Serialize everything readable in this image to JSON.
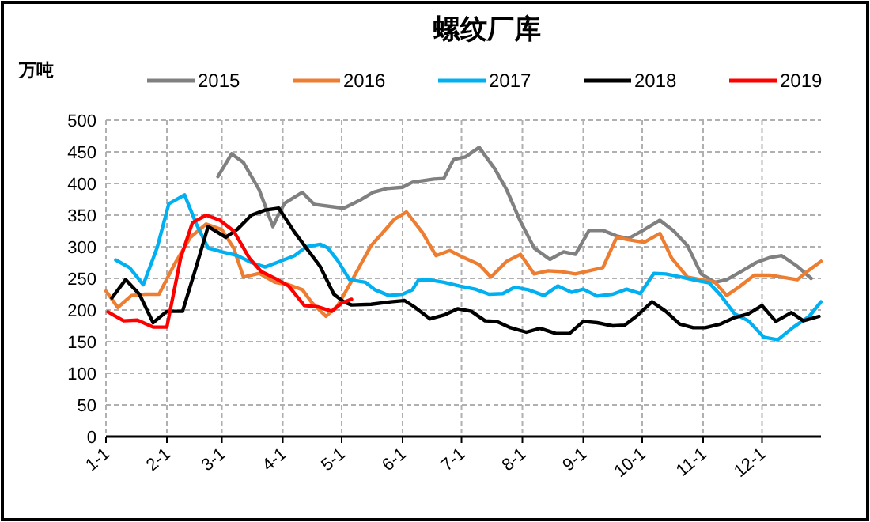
{
  "chart_data": {
    "type": "line",
    "title": "螺纹厂库",
    "ylabel": "万吨",
    "xlim": [
      "--01-01",
      "--12-31"
    ],
    "ylim": [
      0,
      500
    ],
    "xticks": [
      {
        "value": "--01-01",
        "label": "1-1"
      },
      {
        "value": "--02-01",
        "label": "2-1"
      },
      {
        "value": "--03-01",
        "label": "3-1"
      },
      {
        "value": "--04-01",
        "label": "4-1"
      },
      {
        "value": "--05-01",
        "label": "5-1"
      },
      {
        "value": "--06-01",
        "label": "6-1"
      },
      {
        "value": "--07-01",
        "label": "7-1"
      },
      {
        "value": "--08-01",
        "label": "8-1"
      },
      {
        "value": "--09-01",
        "label": "9-1"
      },
      {
        "value": "--10-01",
        "label": "10-1"
      },
      {
        "value": "--11-01",
        "label": "11-1"
      },
      {
        "value": "--12-01",
        "label": "12-1"
      }
    ],
    "yticks": [
      0,
      50,
      100,
      150,
      200,
      250,
      300,
      350,
      400,
      450,
      500
    ],
    "grid": true,
    "legend": "top",
    "marker": "none",
    "line_style": "solid",
    "series": [
      {
        "name": "2015",
        "color": "#808080",
        "x": [
          "--02-27",
          "--03-06",
          "--03-12",
          "--03-20",
          "--03-27",
          "--03-30",
          "--04-02",
          "--04-11",
          "--04-17",
          "--05-02",
          "--05-10",
          "--05-17",
          "--05-24",
          "--06-01",
          "--06-06",
          "--06-17",
          "--06-22",
          "--06-27",
          "--07-03",
          "--07-10",
          "--07-18",
          "--07-24",
          "--07-31",
          "--08-07",
          "--08-15",
          "--08-22",
          "--08-28",
          "--09-04",
          "--09-11",
          "--09-18",
          "--09-24",
          "--10-02",
          "--10-10",
          "--10-17",
          "--10-24",
          "--10-31",
          "--11-07",
          "--11-13",
          "--11-21",
          "--11-28",
          "--12-05",
          "--12-11",
          "--12-19",
          "--12-26"
        ],
        "values": [
          411,
          447,
          433,
          390,
          332,
          352,
          369,
          386,
          367,
          361,
          373,
          386,
          392,
          394,
          402,
          407,
          408,
          438,
          442,
          457,
          423,
          390,
          340,
          298,
          280,
          292,
          288,
          326,
          326,
          317,
          313,
          327,
          342,
          325,
          302,
          257,
          244,
          248,
          262,
          275,
          283,
          286,
          269,
          250
        ]
      },
      {
        "name": "2016",
        "color": "#ed7d31",
        "x": [
          "--01-01",
          "--01-07",
          "--01-14",
          "--01-21",
          "--01-28",
          "--02-05",
          "--02-13",
          "--02-21",
          "--03-01",
          "--03-07",
          "--03-12",
          "--03-20",
          "--03-28",
          "--04-04",
          "--04-11",
          "--04-16",
          "--04-23",
          "--04-29",
          "--05-05",
          "--05-16",
          "--05-21",
          "--05-28",
          "--06-03",
          "--06-11",
          "--06-18",
          "--06-25",
          "--07-02",
          "--07-10",
          "--07-16",
          "--07-24",
          "--07-31",
          "--08-07",
          "--08-14",
          "--08-20",
          "--08-28",
          "--09-04",
          "--09-11",
          "--09-18",
          "--09-24",
          "--10-02",
          "--10-10",
          "--10-16",
          "--10-24",
          "--10-31",
          "--11-07",
          "--11-13",
          "--11-20",
          "--11-27",
          "--12-05",
          "--12-11",
          "--12-19",
          "--12-24",
          "--12-31"
        ],
        "values": [
          230,
          204,
          223,
          225,
          225,
          273,
          315,
          336,
          327,
          298,
          252,
          258,
          244,
          240,
          232,
          211,
          190,
          207,
          240,
          302,
          319,
          344,
          355,
          323,
          286,
          294,
          283,
          272,
          252,
          277,
          288,
          257,
          262,
          261,
          257,
          262,
          267,
          315,
          311,
          307,
          321,
          282,
          252,
          248,
          244,
          223,
          238,
          255,
          255,
          252,
          248,
          261,
          277
        ]
      },
      {
        "name": "2017",
        "color": "#00b0f0",
        "x": [
          "--01-06",
          "--01-13",
          "--01-20",
          "--01-27",
          "--02-02",
          "--02-10",
          "--02-16",
          "--02-22",
          "--03-01",
          "--03-09",
          "--03-16",
          "--03-23",
          "--03-29",
          "--04-07",
          "--04-13",
          "--04-20",
          "--04-24",
          "--04-29",
          "--05-05",
          "--05-13",
          "--05-18",
          "--05-25",
          "--06-01",
          "--06-06",
          "--06-09",
          "--06-14",
          "--06-22",
          "--06-30",
          "--07-08",
          "--07-15",
          "--07-22",
          "--07-28",
          "--08-04",
          "--08-12",
          "--08-19",
          "--08-26",
          "--09-01",
          "--09-08",
          "--09-16",
          "--09-23",
          "--09-30",
          "--10-07",
          "--10-13",
          "--10-21",
          "--10-28",
          "--11-04",
          "--11-10",
          "--11-17",
          "--11-24",
          "--12-02",
          "--12-09",
          "--12-17",
          "--12-25",
          "--12-31"
        ],
        "values": [
          279,
          267,
          240,
          298,
          368,
          382,
          336,
          298,
          292,
          286,
          275,
          268,
          275,
          286,
          300,
          304,
          298,
          278,
          248,
          244,
          232,
          223,
          225,
          232,
          247,
          248,
          244,
          238,
          233,
          225,
          226,
          236,
          232,
          223,
          238,
          228,
          233,
          222,
          225,
          233,
          226,
          258,
          257,
          252,
          247,
          243,
          223,
          194,
          183,
          157,
          153,
          173,
          190,
          213
        ]
      },
      {
        "name": "2018",
        "color": "#000000",
        "x": [
          "--01-04",
          "--01-11",
          "--01-18",
          "--01-25",
          "--02-01",
          "--02-09",
          "--02-16",
          "--02-22",
          "--03-03",
          "--03-09",
          "--03-16",
          "--03-23",
          "--03-30",
          "--04-07",
          "--04-13",
          "--04-20",
          "--04-27",
          "--05-02",
          "--05-06",
          "--05-16",
          "--05-26",
          "--06-02",
          "--06-07",
          "--06-15",
          "--06-22",
          "--06-29",
          "--07-06",
          "--07-13",
          "--07-19",
          "--07-26",
          "--08-03",
          "--08-10",
          "--08-18",
          "--08-25",
          "--09-01",
          "--09-08",
          "--09-16",
          "--09-22",
          "--09-28",
          "--10-06",
          "--10-13",
          "--10-20",
          "--10-27",
          "--11-02",
          "--11-10",
          "--11-17",
          "--11-24",
          "--12-01",
          "--12-08",
          "--12-16",
          "--12-22",
          "--12-30"
        ],
        "values": [
          219,
          248,
          225,
          180,
          198,
          198,
          269,
          332,
          315,
          328,
          350,
          358,
          361,
          323,
          298,
          269,
          225,
          213,
          208,
          209,
          213,
          215,
          205,
          186,
          192,
          202,
          198,
          183,
          182,
          172,
          165,
          171,
          163,
          163,
          182,
          180,
          175,
          176,
          190,
          213,
          198,
          178,
          172,
          172,
          178,
          188,
          194,
          207,
          182,
          196,
          183,
          190
        ]
      },
      {
        "name": "2019",
        "color": "#ff0000",
        "x": [
          "--01-02",
          "--01-10",
          "--01-17",
          "--01-25",
          "--02-01",
          "--02-08",
          "--02-14",
          "--02-21",
          "--02-28",
          "--03-07",
          "--03-15",
          "--03-21",
          "--03-30",
          "--04-04",
          "--04-12",
          "--04-19",
          "--04-26",
          "--05-01",
          "--05-06"
        ],
        "values": [
          197,
          183,
          184,
          173,
          173,
          282,
          338,
          350,
          342,
          325,
          282,
          261,
          247,
          238,
          207,
          205,
          198,
          211,
          217
        ]
      }
    ]
  }
}
